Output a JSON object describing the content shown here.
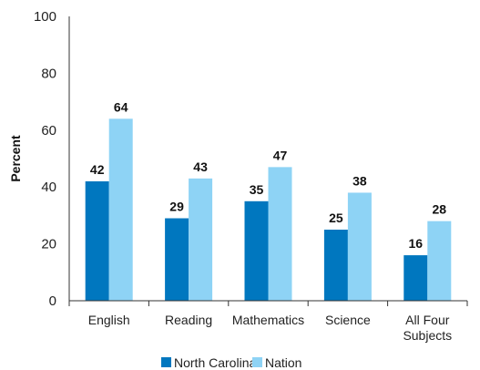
{
  "chart_data": {
    "type": "bar",
    "ylabel": "Percent",
    "ylim": [
      0,
      100
    ],
    "yticks": [
      0,
      20,
      40,
      60,
      80,
      100
    ],
    "categories": [
      [
        "English"
      ],
      [
        "Reading"
      ],
      [
        "Mathematics"
      ],
      [
        "Science"
      ],
      [
        "All Four",
        "Subjects"
      ]
    ],
    "series": [
      {
        "name": "North Carolina",
        "color": "#0077BF",
        "values": [
          42,
          29,
          35,
          25,
          16
        ]
      },
      {
        "name": "Nation",
        "color": "#8ED3F5",
        "values": [
          64,
          43,
          47,
          38,
          28
        ]
      }
    ],
    "legend_position": "bottom",
    "grid": false
  }
}
